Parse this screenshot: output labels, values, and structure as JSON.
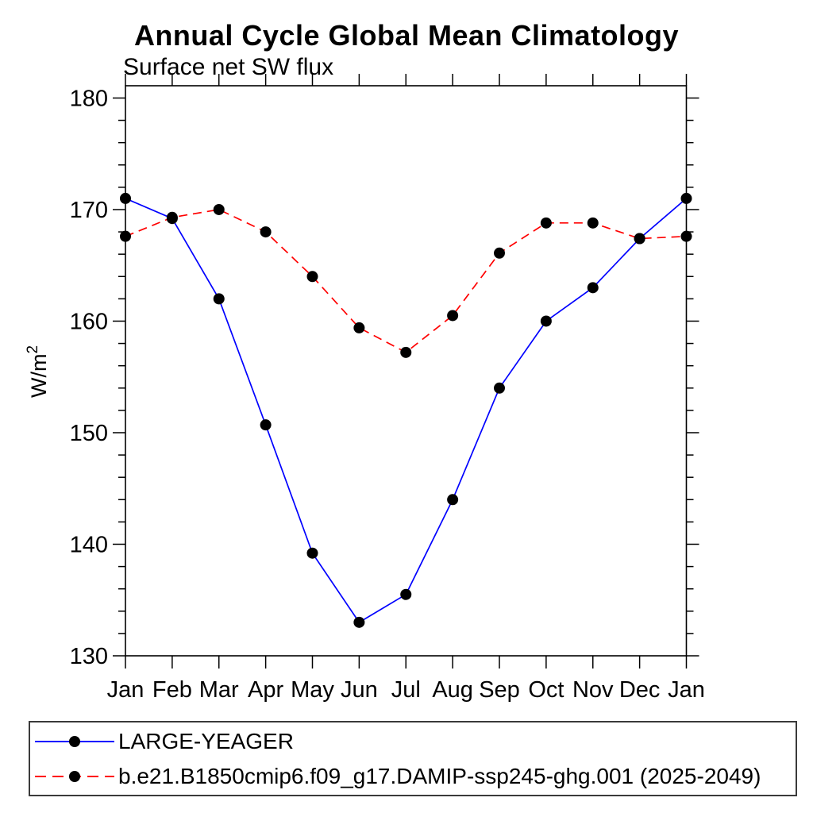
{
  "figure": {
    "title": "Annual Cycle Global Mean Climatology",
    "subtitle": "Surface net SW flux"
  },
  "chart_data": {
    "type": "line",
    "title": "Annual Cycle Global Mean Climatology",
    "subtitle": "Surface net SW flux",
    "xlabel": "",
    "ylabel": "W/m²",
    "ylabel_base": "W/m",
    "ylabel_sup": "2",
    "categories": [
      "Jan",
      "Feb",
      "Mar",
      "Apr",
      "May",
      "Jun",
      "Jul",
      "Aug",
      "Sep",
      "Oct",
      "Nov",
      "Dec",
      "Jan"
    ],
    "ylim": [
      130,
      181.1
    ],
    "yticks_major": [
      130,
      140,
      150,
      160,
      170,
      180
    ],
    "ytick_minor_step": 2,
    "grid": false,
    "legend_position": "bottom-left-box",
    "axis_color": "#000000",
    "marker_color": "#000000",
    "series": [
      {
        "name": "LARGE-YEAGER",
        "color": "#0000ff",
        "style": "solid",
        "values": [
          171.0,
          169.2,
          162.0,
          150.7,
          139.2,
          133.0,
          135.5,
          144.0,
          154.0,
          160.0,
          163.0,
          167.4,
          171.0
        ]
      },
      {
        "name": "b.e21.B1850cmip6.f09_g17.DAMIP-ssp245-ghg.001 (2025-2049)",
        "color": "#ff0000",
        "style": "dashed",
        "values": [
          167.6,
          169.3,
          170.0,
          168.0,
          164.0,
          159.4,
          157.2,
          160.5,
          166.1,
          168.8,
          168.8,
          167.4,
          167.6
        ]
      }
    ]
  }
}
